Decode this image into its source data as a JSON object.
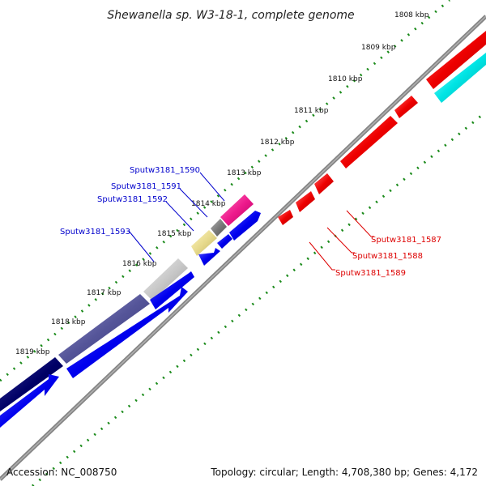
{
  "title": "Shewanella sp. W3-18-1, complete genome",
  "footer": {
    "accession": "Accession: NC_008750",
    "stats": "Topology: circular; Length: 4,708,380 bp; Genes: 4,172"
  },
  "ticks": [
    "1808 kbp",
    "1809 kbp",
    "1810 kbp",
    "1811 kbp",
    "1812 kbp",
    "1813 kbp",
    "1814 kbp",
    "1815 kbp",
    "1816 kbp",
    "1817 kbp",
    "1818 kbp",
    "1819 kbp"
  ],
  "labels": {
    "g1587": "Sputw3181_1587",
    "g1588": "Sputw3181_1588",
    "g1589": "Sputw3181_1589",
    "g1590": "Sputw3181_1590",
    "g1591": "Sputw3181_1591",
    "g1592": "Sputw3181_1592",
    "g1593": "Sputw3181_1593"
  },
  "colors": {
    "blue_label": "#0000cc",
    "red_label": "#dd0000",
    "tick": "#1a8a1a",
    "backbone": "#808080",
    "red": "#ee0000",
    "cyan": "#00e5e5",
    "blue": "#0000ee",
    "navy": "#000066",
    "slate": "#555599",
    "grey_light": "#c8c8c8",
    "khaki": "#e6d98c",
    "grey_dark": "#7a7a7a",
    "magenta": "#ee1a8c"
  }
}
